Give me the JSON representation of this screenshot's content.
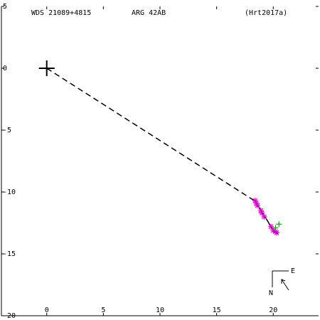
{
  "header": {
    "wds_id": "WDS 21089+4815",
    "discoverer": "ARG  42AB",
    "reference": "(Hrt2017a)"
  },
  "compass": {
    "north": "N",
    "east": "E"
  },
  "colors": {
    "axes": "#000000",
    "orbit": "#000000",
    "observations": "#ff00cc",
    "recent_observation": "#00aa00",
    "residual_dots": "#0000ff",
    "background": "#ffffff"
  },
  "chart_data": {
    "type": "scatter",
    "title": "",
    "xlabel": "",
    "ylabel": "",
    "xlim": [
      -4,
      24
    ],
    "ylim": [
      -20,
      5
    ],
    "x_ticks": [
      0,
      5,
      10,
      15,
      20
    ],
    "x_tick_labels": [
      "0",
      "5",
      "10",
      "15",
      "20"
    ],
    "y_ticks": [
      5,
      0,
      -5,
      -10,
      -15,
      -20
    ],
    "y_tick_labels": [
      "5",
      "0",
      "-5",
      "-10",
      "-15",
      "-20"
    ],
    "y_label_side": "left",
    "grid": false,
    "primary_star": {
      "x": 0,
      "y": 0,
      "marker": "plus"
    },
    "node_line": {
      "from": [
        0,
        0
      ],
      "to": [
        18.5,
        -10.8
      ],
      "style": "dashed"
    },
    "orbit_arc": [
      [
        18.3,
        -10.6
      ],
      [
        19.0,
        -11.6
      ],
      [
        19.6,
        -12.5
      ],
      [
        20.1,
        -13.3
      ]
    ],
    "series": [
      {
        "marker": "asterisk",
        "points": [
          [
            18.4,
            -10.7
          ],
          [
            18.5,
            -10.9
          ],
          [
            18.6,
            -11.1
          ],
          [
            18.9,
            -11.5
          ],
          [
            19.0,
            -11.7
          ],
          [
            19.2,
            -12.0
          ],
          [
            19.8,
            -12.8
          ],
          [
            20.0,
            -13.1
          ],
          [
            20.2,
            -13.2
          ],
          [
            20.3,
            -13.3
          ]
        ]
      },
      {
        "marker": "plus",
        "points": [
          [
            20.5,
            -12.6
          ],
          [
            20.2,
            -12.9
          ]
        ]
      }
    ]
  }
}
